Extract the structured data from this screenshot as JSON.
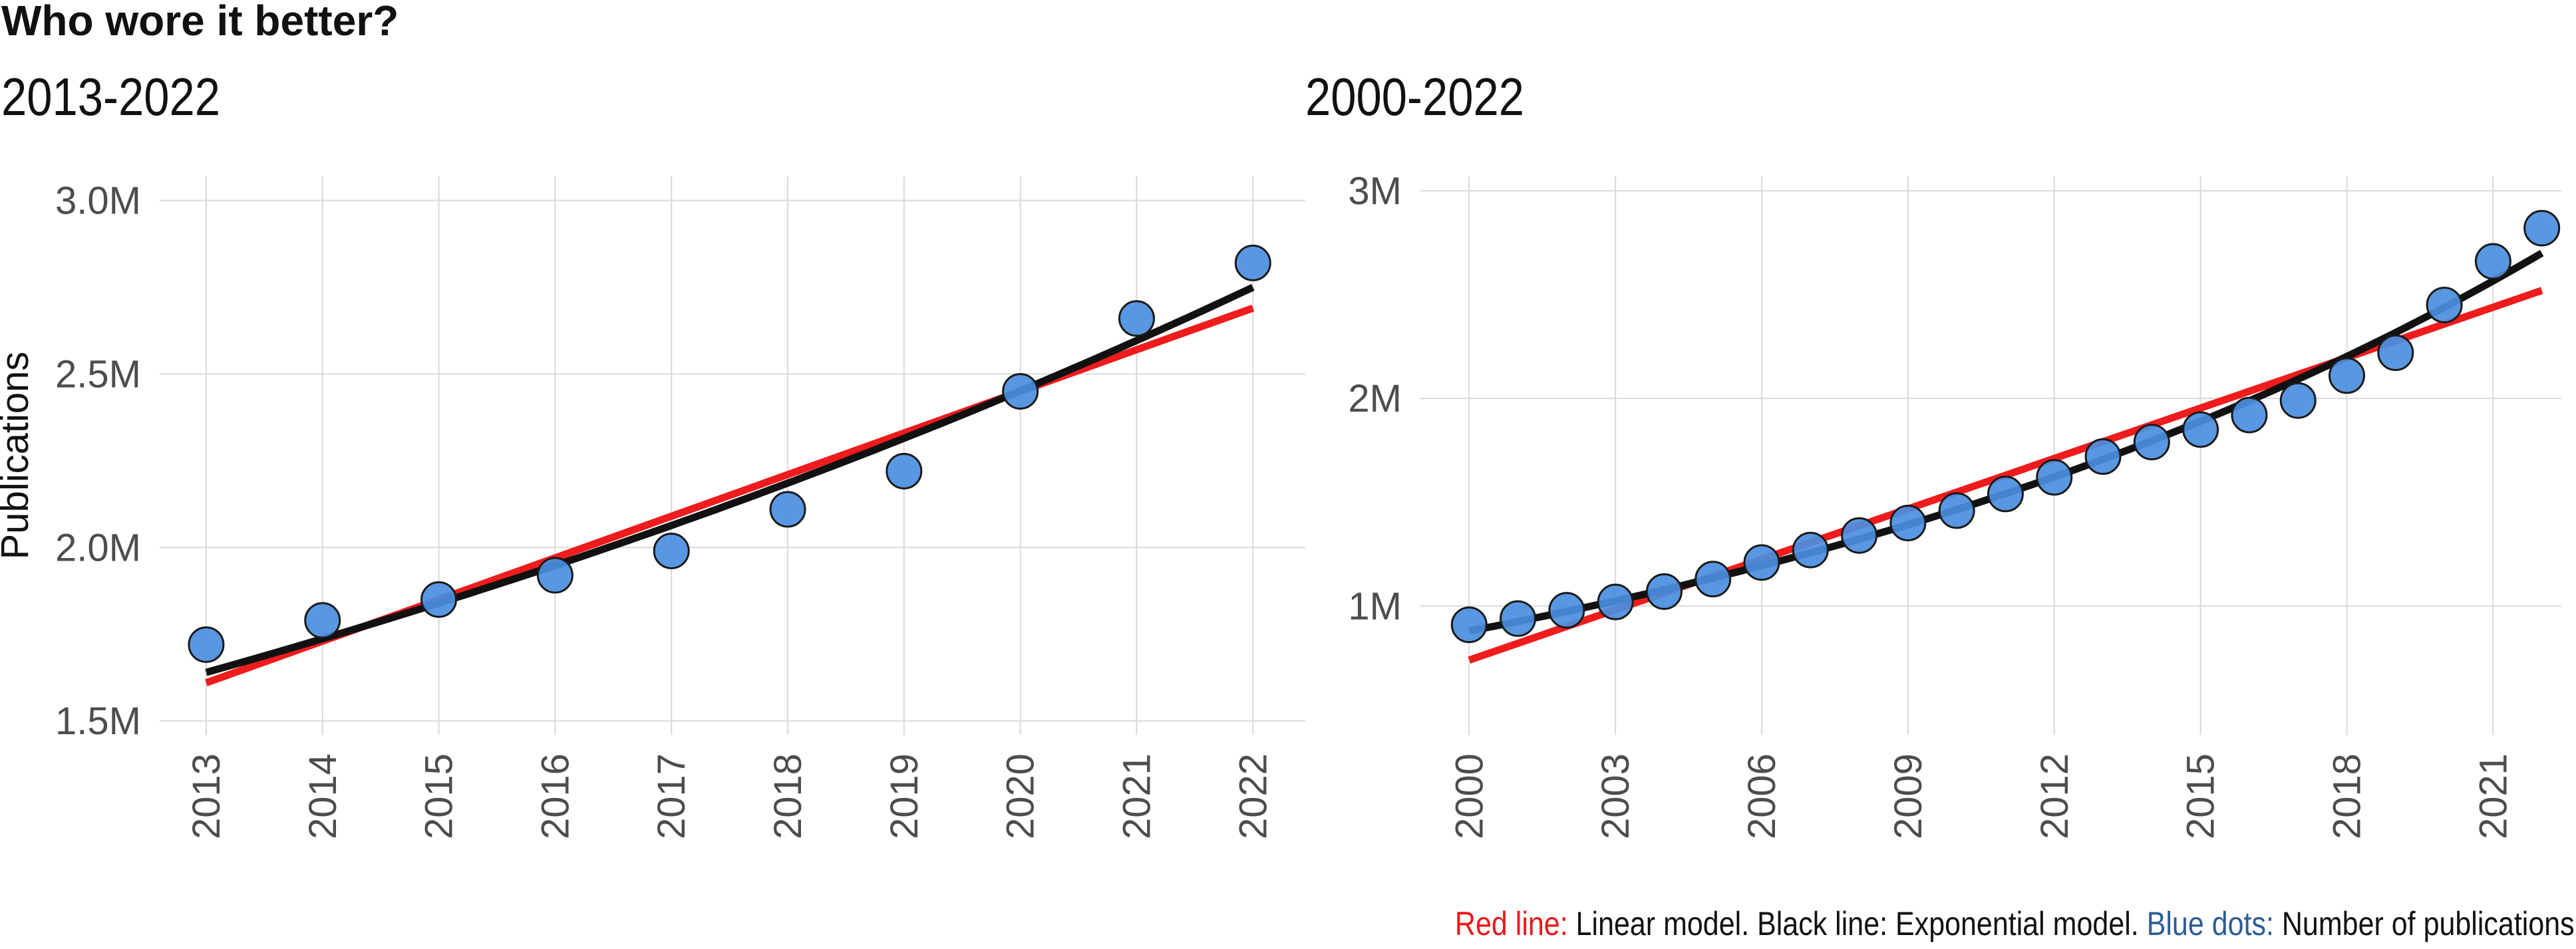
{
  "title": "Who wore it better?",
  "caption": {
    "red_label": "Red line:",
    "red_text": " Linear model. Black line: Exponential model. ",
    "blue_label": "Blue dots:",
    "blue_text": " Number of publications",
    "red_color": "#e8191a",
    "blue_color": "#2e5d95"
  },
  "colors": {
    "linear": "#ee1c1c",
    "exponential": "#111111",
    "dot_fill": "#4a8ee0",
    "dot_stroke": "#1a1a1a",
    "grid": "#d9d9d9"
  },
  "chart_data": [
    {
      "type": "scatter",
      "title": "2013-2022",
      "ylabel": "Publications",
      "xlabel": "",
      "x": [
        2013,
        2014,
        2015,
        2016,
        2017,
        2018,
        2019,
        2020,
        2021,
        2022
      ],
      "y": [
        1.72,
        1.79,
        1.85,
        1.92,
        1.99,
        2.11,
        2.22,
        2.45,
        2.66,
        2.82
      ],
      "xticks": [
        2013,
        2014,
        2015,
        2016,
        2017,
        2018,
        2019,
        2020,
        2021,
        2022
      ],
      "yticks": [
        1.5,
        2.0,
        2.5,
        3.0
      ],
      "ytick_labels": [
        "1.5M",
        "2.0M",
        "2.5M",
        "3.0M"
      ],
      "xlim": [
        2012.6,
        2022.45
      ],
      "ylim": [
        1.46,
        3.07
      ],
      "linear_fit": {
        "x": [
          2013,
          2022
        ],
        "y": [
          1.61,
          2.69
        ]
      },
      "exp_fit": {
        "start": [
          2013,
          1.64
        ],
        "end": [
          2022,
          2.75
        ]
      },
      "grid": true
    },
    {
      "type": "scatter",
      "title": "2000-2022",
      "ylabel": "",
      "xlabel": "",
      "x": [
        2000,
        2001,
        2002,
        2003,
        2004,
        2005,
        2006,
        2007,
        2008,
        2009,
        2010,
        2011,
        2012,
        2013,
        2014,
        2015,
        2016,
        2017,
        2018,
        2019,
        2020,
        2021,
        2022
      ],
      "y": [
        0.91,
        0.94,
        0.98,
        1.02,
        1.07,
        1.13,
        1.21,
        1.27,
        1.34,
        1.4,
        1.46,
        1.54,
        1.62,
        1.72,
        1.79,
        1.85,
        1.92,
        1.99,
        2.11,
        2.22,
        2.45,
        2.66,
        2.82
      ],
      "xticks": [
        2000,
        2003,
        2006,
        2009,
        2012,
        2015,
        2018,
        2021
      ],
      "yticks": [
        1,
        2,
        3
      ],
      "ytick_labels": [
        "1M",
        "2M",
        "3M"
      ],
      "xlim": [
        1999.0,
        2022.4
      ],
      "ylim": [
        0.38,
        3.07
      ],
      "linear_fit": {
        "x": [
          2000,
          2022
        ],
        "y": [
          0.74,
          2.52
        ]
      },
      "exp_fit": {
        "start": [
          2000,
          0.88
        ],
        "end": [
          2022,
          2.7
        ]
      },
      "grid": true
    }
  ]
}
